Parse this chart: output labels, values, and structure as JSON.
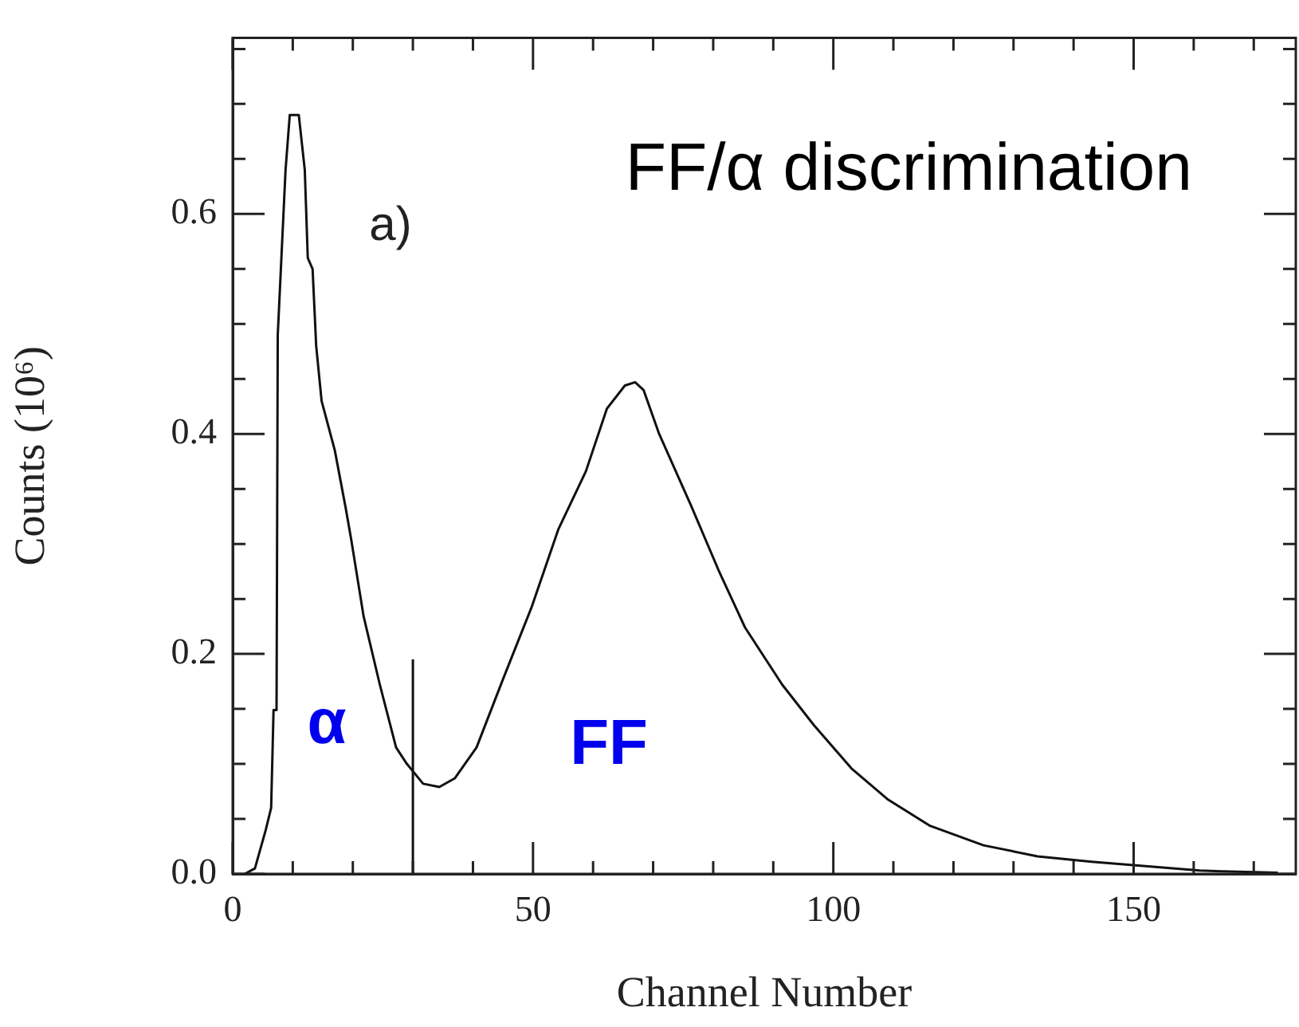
{
  "chart_data": {
    "type": "line",
    "title": "FF/α discrimination",
    "xlabel": "Channel Number",
    "ylabel": "Counts (10⁶)",
    "xlim": [
      0,
      177
    ],
    "ylim": [
      0,
      0.76
    ],
    "xticks": [
      0,
      {
        "value": 10,
        "label": null
      },
      {
        "value": 20,
        "label": null
      },
      {
        "value": 30,
        "label": null
      },
      {
        "value": 40,
        "label": null
      },
      50,
      {
        "value": 60,
        "label": null
      },
      {
        "value": 70,
        "label": null
      },
      {
        "value": 80,
        "label": null
      },
      {
        "value": 90,
        "label": null
      },
      100,
      {
        "value": 110,
        "label": null
      },
      {
        "value": 120,
        "label": null
      },
      {
        "value": 130,
        "label": null
      },
      {
        "value": 140,
        "label": null
      },
      150,
      {
        "value": 160,
        "label": null
      },
      {
        "value": 170,
        "label": null
      }
    ],
    "yticks": [
      {
        "value": 0,
        "label": "0.0"
      },
      {
        "value": 0.05,
        "label": null
      },
      {
        "value": 0.1,
        "label": null
      },
      {
        "value": 0.15,
        "label": null
      },
      {
        "value": 0.2,
        "label": "0.2"
      },
      {
        "value": 0.25,
        "label": null
      },
      {
        "value": 0.3,
        "label": null
      },
      {
        "value": 0.35,
        "label": null
      },
      {
        "value": 0.4,
        "label": "0.4"
      },
      {
        "value": 0.45,
        "label": null
      },
      {
        "value": 0.5,
        "label": null
      },
      {
        "value": 0.55,
        "label": null
      },
      {
        "value": 0.6,
        "label": "0.6"
      },
      {
        "value": 0.65,
        "label": null
      },
      {
        "value": 0.7,
        "label": null
      },
      {
        "value": 0.75,
        "label": null
      }
    ],
    "marker": "none",
    "series": [
      {
        "color": "#111111",
        "x": [
          2,
          3.7,
          5.5,
          6.4,
          6.8,
          7.3,
          7.5,
          8.8,
          9.5,
          11,
          12,
          12.5,
          13.3,
          13.9,
          14.8,
          17,
          18.8,
          19.7,
          21.8,
          24.5,
          27.2,
          29,
          31.7,
          34.4,
          37,
          40.6,
          45,
          49.8,
          54.2,
          58.8,
          62.3,
          65.3,
          67,
          68.4,
          71,
          76.3,
          80.9,
          85.3,
          91.5,
          96.8,
          103,
          109,
          116,
          125,
          134,
          143,
          152,
          161,
          174
        ],
        "values": [
          0,
          0.005,
          0.04,
          0.06,
          0.149,
          0.149,
          0.49,
          0.64,
          0.69,
          0.69,
          0.64,
          0.56,
          0.55,
          0.48,
          0.43,
          0.385,
          0.333,
          0.305,
          0.234,
          0.172,
          0.115,
          0.1,
          0.082,
          0.079,
          0.087,
          0.115,
          0.177,
          0.243,
          0.313,
          0.366,
          0.423,
          0.444,
          0.447,
          0.44,
          0.4,
          0.335,
          0.276,
          0.224,
          0.172,
          0.135,
          0.096,
          0.068,
          0.044,
          0.026,
          0.016,
          0.011,
          0.007,
          0.003,
          0.001
        ]
      },
      {
        "color": "#111111",
        "x": [
          30,
          30
        ],
        "values": [
          0,
          0.195
        ]
      }
    ],
    "annotations": [
      "a)",
      "α",
      "FF"
    ]
  }
}
